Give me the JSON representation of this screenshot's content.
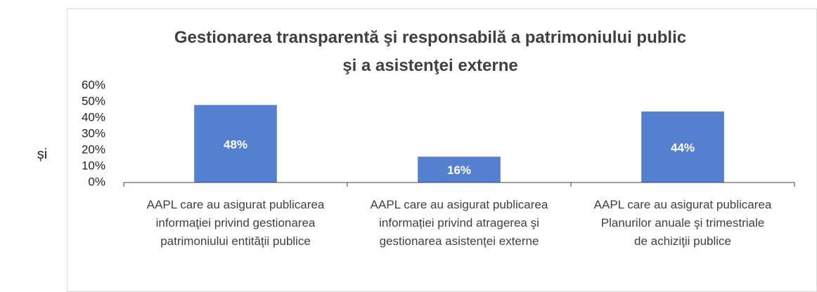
{
  "side_text": "și",
  "chart_data": {
    "type": "bar",
    "title": "Gestionarea transparentă şi responsabilă a patrimoniului public\nşi a asistenţei externe",
    "categories": [
      "AAPL care au asigurat publicarea\ninformaţiei privind gestionarea\npatrimoniului entităţii publice",
      "AAPL care au asigurat publicarea\ninformației privind atragerea şi\ngestionarea asistenţei externe",
      "AAPL care au asigurat publicarea\nPlanurilor anuale şi trimestriale\nde achiziţii publice"
    ],
    "values": [
      48,
      16,
      44
    ],
    "value_labels": [
      "48%",
      "16%",
      "44%"
    ],
    "color": "#5580cf",
    "ylim": [
      0,
      60
    ],
    "yticks": [
      {
        "value": 0,
        "label": "0%"
      },
      {
        "value": 10,
        "label": "10%"
      },
      {
        "value": 20,
        "label": "20%"
      },
      {
        "value": 30,
        "label": "30%"
      },
      {
        "value": 40,
        "label": "40%"
      },
      {
        "value": 50,
        "label": "50%"
      },
      {
        "value": 60,
        "label": "60%"
      }
    ],
    "grid": false
  }
}
